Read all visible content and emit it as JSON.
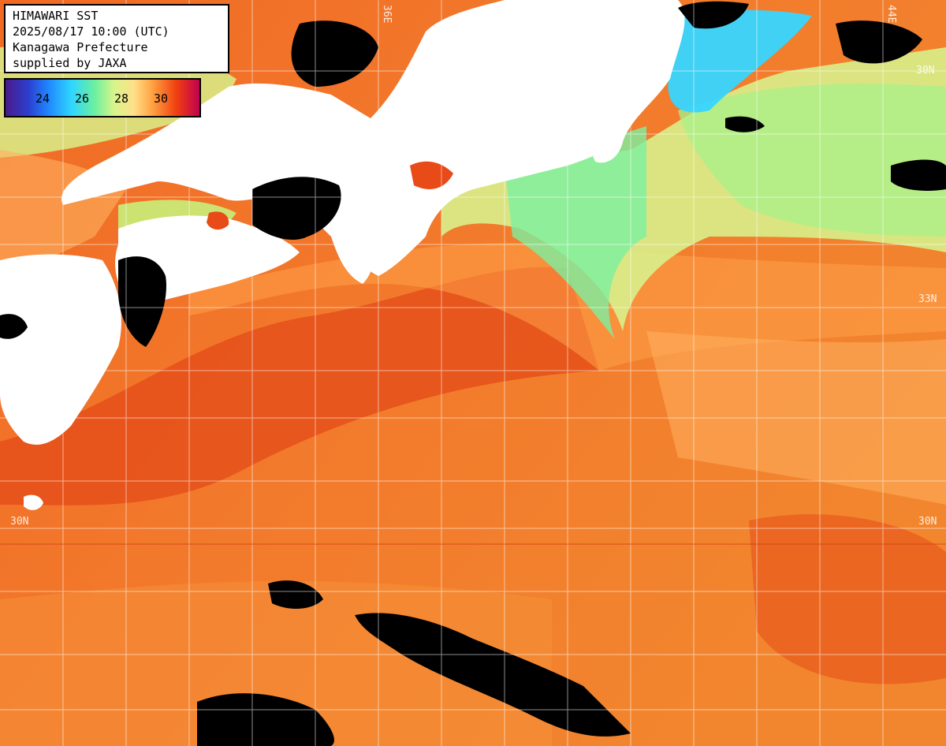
{
  "header": {
    "line1": "HIMAWARI SST",
    "line2": "2025/08/17 10:00 (UTC)",
    "line3": "Kanagawa Prefecture",
    "line4": "supplied by JAXA"
  },
  "colorbar": {
    "ticks": [
      "24",
      "26",
      "28",
      "30"
    ]
  },
  "grid_labels": {
    "lon_136": "36E",
    "lon_144": "44E",
    "lat_33_right": "33N",
    "lat_30_left": "30N",
    "lat_30_right": "30N",
    "lat_top_right": "30N"
  },
  "colors": {
    "land": "#ffffff",
    "cloud": "#000000",
    "warm_sea": "#f07a2a",
    "hot_sea": "#e84a18",
    "mild_sea": "#ffb060",
    "cool_sea": "#c8f07a",
    "cold_sea": "#6cf09c",
    "colder_sea": "#36d6ff",
    "grid": "#ffffff"
  }
}
